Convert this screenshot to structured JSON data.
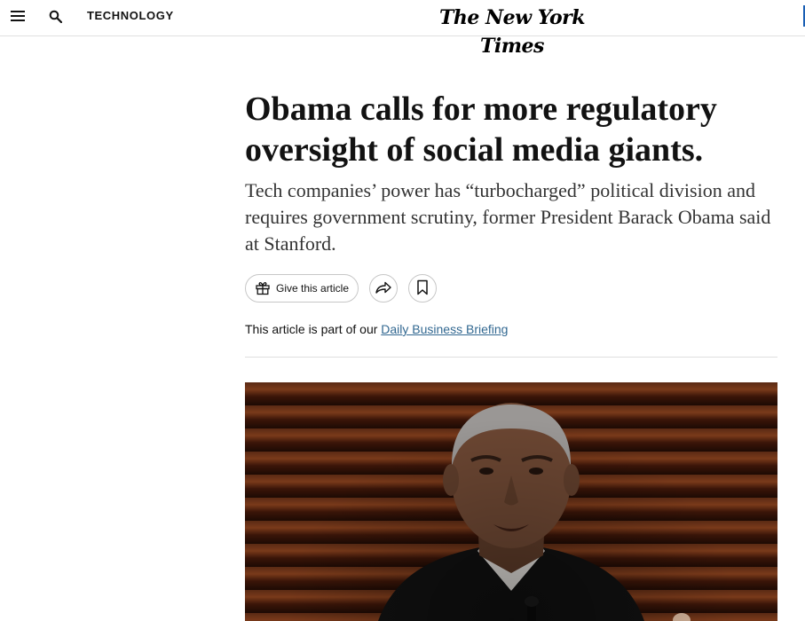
{
  "header": {
    "menu_icon": "hamburger-menu-icon",
    "search_icon": "search-icon",
    "section_label": "TECHNOLOGY",
    "logo_text": "The New York Times"
  },
  "article": {
    "headline": "Obama calls for more regulatory oversight of social media giants.",
    "summary": "Tech companies’ power has “turbocharged” political division and requires government scrutiny, former President Barack Obama said at Stanford.",
    "actions": {
      "gift_label": "Give this article",
      "gift_icon": "gift-icon",
      "share_icon": "share-icon",
      "save_icon": "bookmark-icon"
    },
    "part_of_prefix": "This article is part of our ",
    "part_of_link": "Daily Business Briefing"
  },
  "photo": {
    "alt_icon": "article-photo"
  },
  "colors": {
    "link": "#326891",
    "text": "#121212",
    "border": "#dfdfdf",
    "photo_bg": "#5a2a14"
  }
}
